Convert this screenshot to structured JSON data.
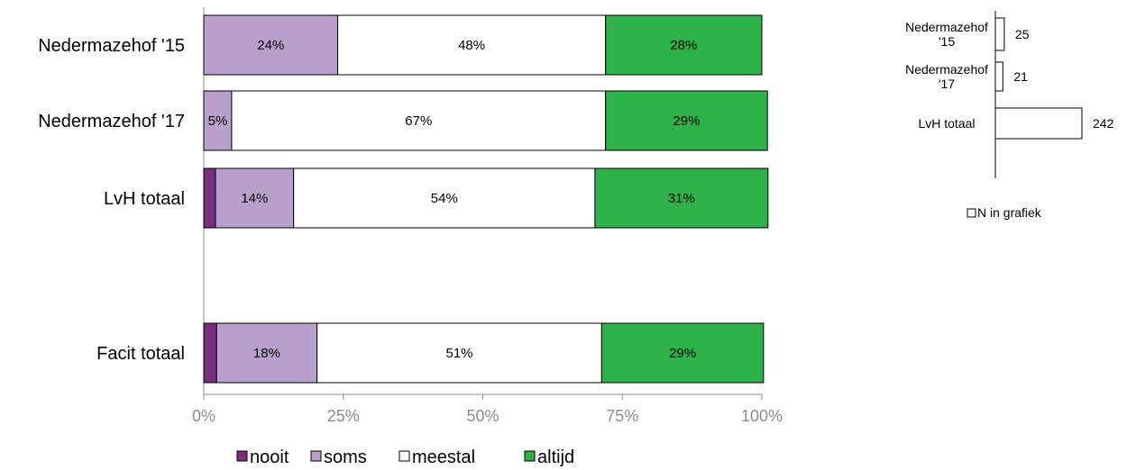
{
  "chart_data": [
    {
      "type": "bar",
      "orientation": "horizontal",
      "stacked": "percent",
      "categories": [
        "Nedermazehof '15",
        "Nedermazehof '17",
        "LvH totaal",
        "Facit totaal"
      ],
      "series": [
        {
          "name": "nooit",
          "color": "#7b2d7f",
          "values": [
            0,
            0,
            2.1,
            2.3
          ]
        },
        {
          "name": "soms",
          "color": "#b9a0cc",
          "values": [
            24,
            5,
            14,
            18
          ]
        },
        {
          "name": "meestal",
          "color": "#ffffff",
          "values": [
            48,
            67,
            54,
            51
          ]
        },
        {
          "name": "altijd",
          "color": "#2db34a",
          "values": [
            28,
            29,
            31,
            29
          ]
        }
      ],
      "data_labels": [
        [
          "",
          "24%",
          "48%",
          "28%"
        ],
        [
          "",
          "5%",
          "67%",
          "29%"
        ],
        [
          "",
          "14%",
          "54%",
          "31%"
        ],
        [
          "",
          "18%",
          "51%",
          "29%"
        ]
      ],
      "ticks": [
        "0%",
        "25%",
        "50%",
        "75%",
        "100%"
      ],
      "xlim": [
        0,
        100
      ],
      "legend": {
        "placement": "bottom",
        "entries": [
          "nooit",
          "soms",
          "meestal",
          "altijd"
        ]
      }
    },
    {
      "type": "bar",
      "orientation": "horizontal",
      "categories": [
        "Nedermazehof\n'15",
        "Nedermazehof\n'17",
        "LvH totaal"
      ],
      "series": [
        {
          "name": "N in grafiek",
          "color": "#ffffff",
          "values": [
            25,
            21,
            242
          ]
        }
      ],
      "legend": {
        "placement": "bottom",
        "entries": [
          "N in grafiek"
        ]
      }
    }
  ]
}
